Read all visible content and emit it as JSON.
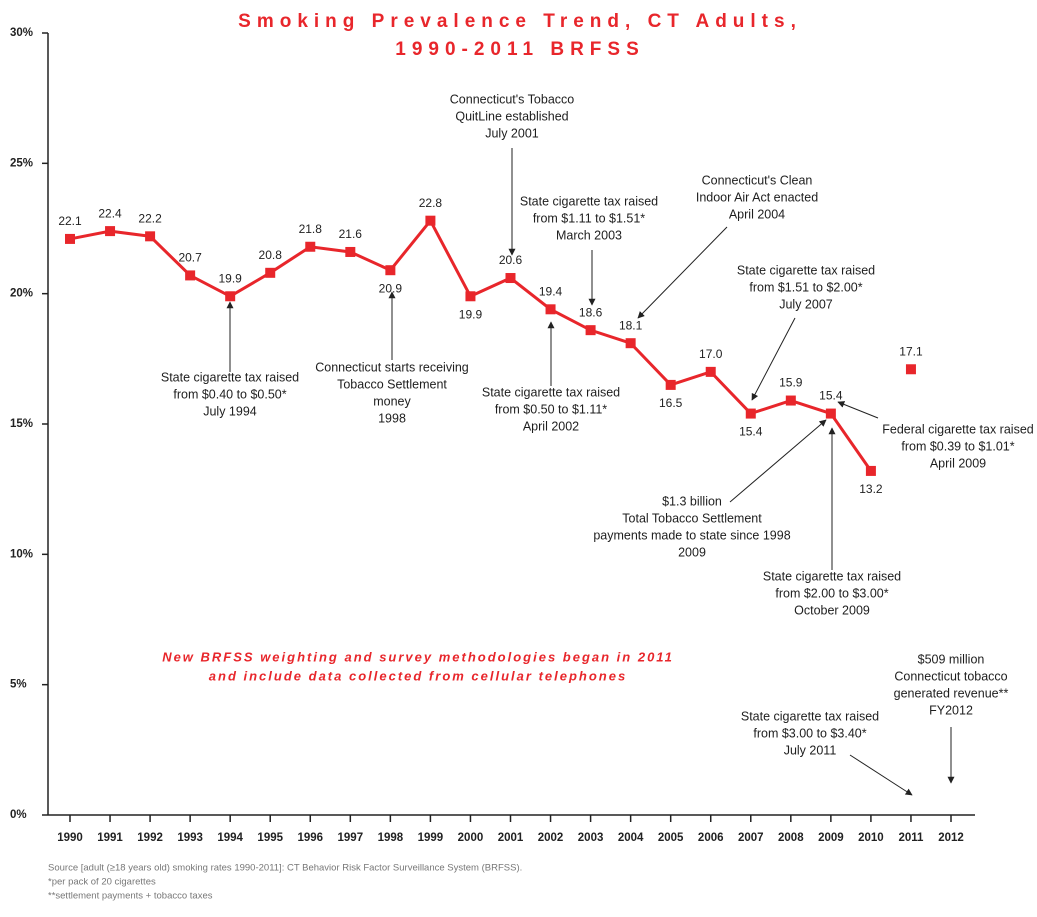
{
  "chart_data": {
    "type": "line",
    "title": [
      "Smoking Prevalence Trend, CT Adults,",
      "1990-2011 BRFSS"
    ],
    "categories": [
      "1990",
      "1991",
      "1992",
      "1993",
      "1994",
      "1995",
      "1996",
      "1997",
      "1998",
      "1999",
      "2000",
      "2001",
      "2002",
      "2003",
      "2004",
      "2005",
      "2006",
      "2007",
      "2008",
      "2009",
      "2010",
      "2011",
      "2012"
    ],
    "series": [
      {
        "color": "#e8262b",
        "values": [
          22.1,
          22.4,
          22.2,
          20.7,
          19.9,
          20.8,
          21.8,
          21.6,
          20.9,
          22.8,
          19.9,
          20.6,
          19.4,
          18.6,
          18.1,
          16.5,
          17.0,
          15.4,
          15.9,
          15.4,
          13.2,
          null,
          null
        ],
        "value_labels": [
          "22.1",
          "22.4",
          "22.2",
          "20.7",
          "19.9",
          "20.8",
          "21.8",
          "21.6",
          "20.9",
          "22.8",
          "19.9",
          "20.6",
          "19.4",
          "18.6",
          "18.1",
          "16.5",
          "17.0",
          "15.4",
          "15.9",
          "15.4",
          "13.2",
          null,
          null
        ]
      },
      {
        "color": "#e8262b",
        "values": [
          null,
          null,
          null,
          null,
          null,
          null,
          null,
          null,
          null,
          null,
          null,
          null,
          null,
          null,
          null,
          null,
          null,
          null,
          null,
          null,
          null,
          17.1,
          null
        ],
        "value_labels": [
          null,
          null,
          null,
          null,
          null,
          null,
          null,
          null,
          null,
          null,
          null,
          null,
          null,
          null,
          null,
          null,
          null,
          null,
          null,
          null,
          null,
          "17.1",
          null
        ]
      }
    ],
    "ylim": [
      0,
      30
    ],
    "yticks": [
      {
        "value": 0,
        "label": "0%"
      },
      {
        "value": 5,
        "label": "5%"
      },
      {
        "value": 10,
        "label": "10%"
      },
      {
        "value": 15,
        "label": "15%"
      },
      {
        "value": 20,
        "label": "20%"
      },
      {
        "value": 25,
        "label": "25%"
      },
      {
        "value": 30,
        "label": "30%"
      }
    ],
    "annotations": [
      {
        "lines": [
          "Connecticut's Tobacco",
          "QuitLine established",
          "July 2001"
        ]
      },
      {
        "lines": [
          "State cigarette tax raised",
          "from $1.11 to $1.51*",
          "March 2003"
        ]
      },
      {
        "lines": [
          "Connecticut's Clean",
          "Indoor Air Act enacted",
          "April 2004"
        ]
      },
      {
        "lines": [
          "State cigarette tax raised",
          "from $1.51 to $2.00*",
          "July 2007"
        ]
      },
      {
        "lines": [
          "State cigarette tax raised",
          "from $0.40 to $0.50*",
          "July 1994"
        ]
      },
      {
        "lines": [
          "Connecticut starts receiving",
          "Tobacco Settlement",
          "money",
          "1998"
        ]
      },
      {
        "lines": [
          "State cigarette tax raised",
          "from $0.50 to $1.11*",
          "April 2002"
        ]
      },
      {
        "lines": [
          "Federal cigarette tax raised",
          "from $0.39 to $1.01*",
          "April 2009"
        ]
      },
      {
        "lines": [
          "$1.3 billion",
          "Total Tobacco Settlement",
          "payments made to state since 1998",
          "2009"
        ]
      },
      {
        "lines": [
          "State cigarette tax raised",
          "from $2.00 to $3.00*",
          "October 2009"
        ]
      },
      {
        "lines": [
          "$509 million",
          "Connecticut tobacco",
          "generated revenue**",
          "FY2012"
        ]
      },
      {
        "lines": [
          "State cigarette tax raised",
          "from $3.00 to $3.40*",
          "July 2011"
        ]
      }
    ],
    "note": [
      "New BRFSS weighting and survey methodologies began in 2011",
      "and include data collected from cellular telephones"
    ],
    "source": [
      "Source [adult (≥18 years old) smoking rates 1990-2011]: CT Behavior Risk Factor Surveillance System (BRFSS).",
      "*per pack of 20 cigarettes",
      "**settlement payments + tobacco taxes"
    ]
  }
}
